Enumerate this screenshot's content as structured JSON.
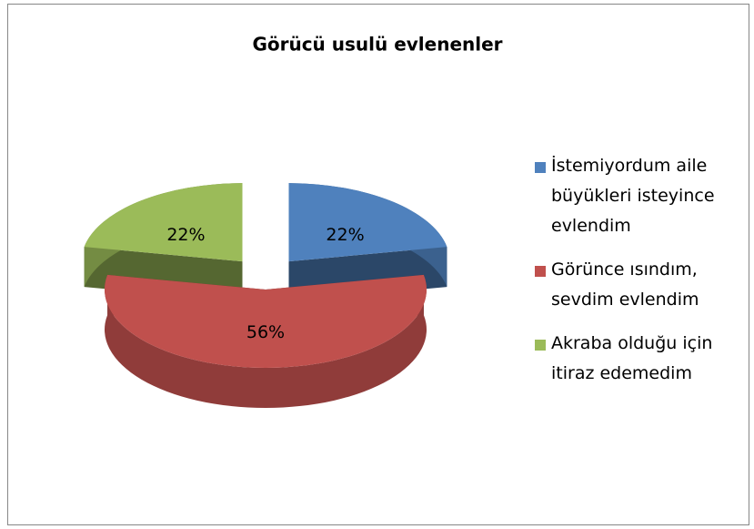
{
  "chart_data": {
    "type": "pie",
    "title": "Görücü usulü evlenenler",
    "categories": [
      "İstemiyordum aile büyükleri isteyince evlendim",
      "Görünce ısındım, sevdim evlendim",
      "Akraba olduğu için itiraz edemedim"
    ],
    "values": [
      22,
      56,
      22
    ],
    "value_labels": [
      "22%",
      "56%",
      "22%"
    ],
    "colors": [
      "#4f81bd",
      "#c0504d",
      "#9bbb59"
    ],
    "legend": "right"
  }
}
